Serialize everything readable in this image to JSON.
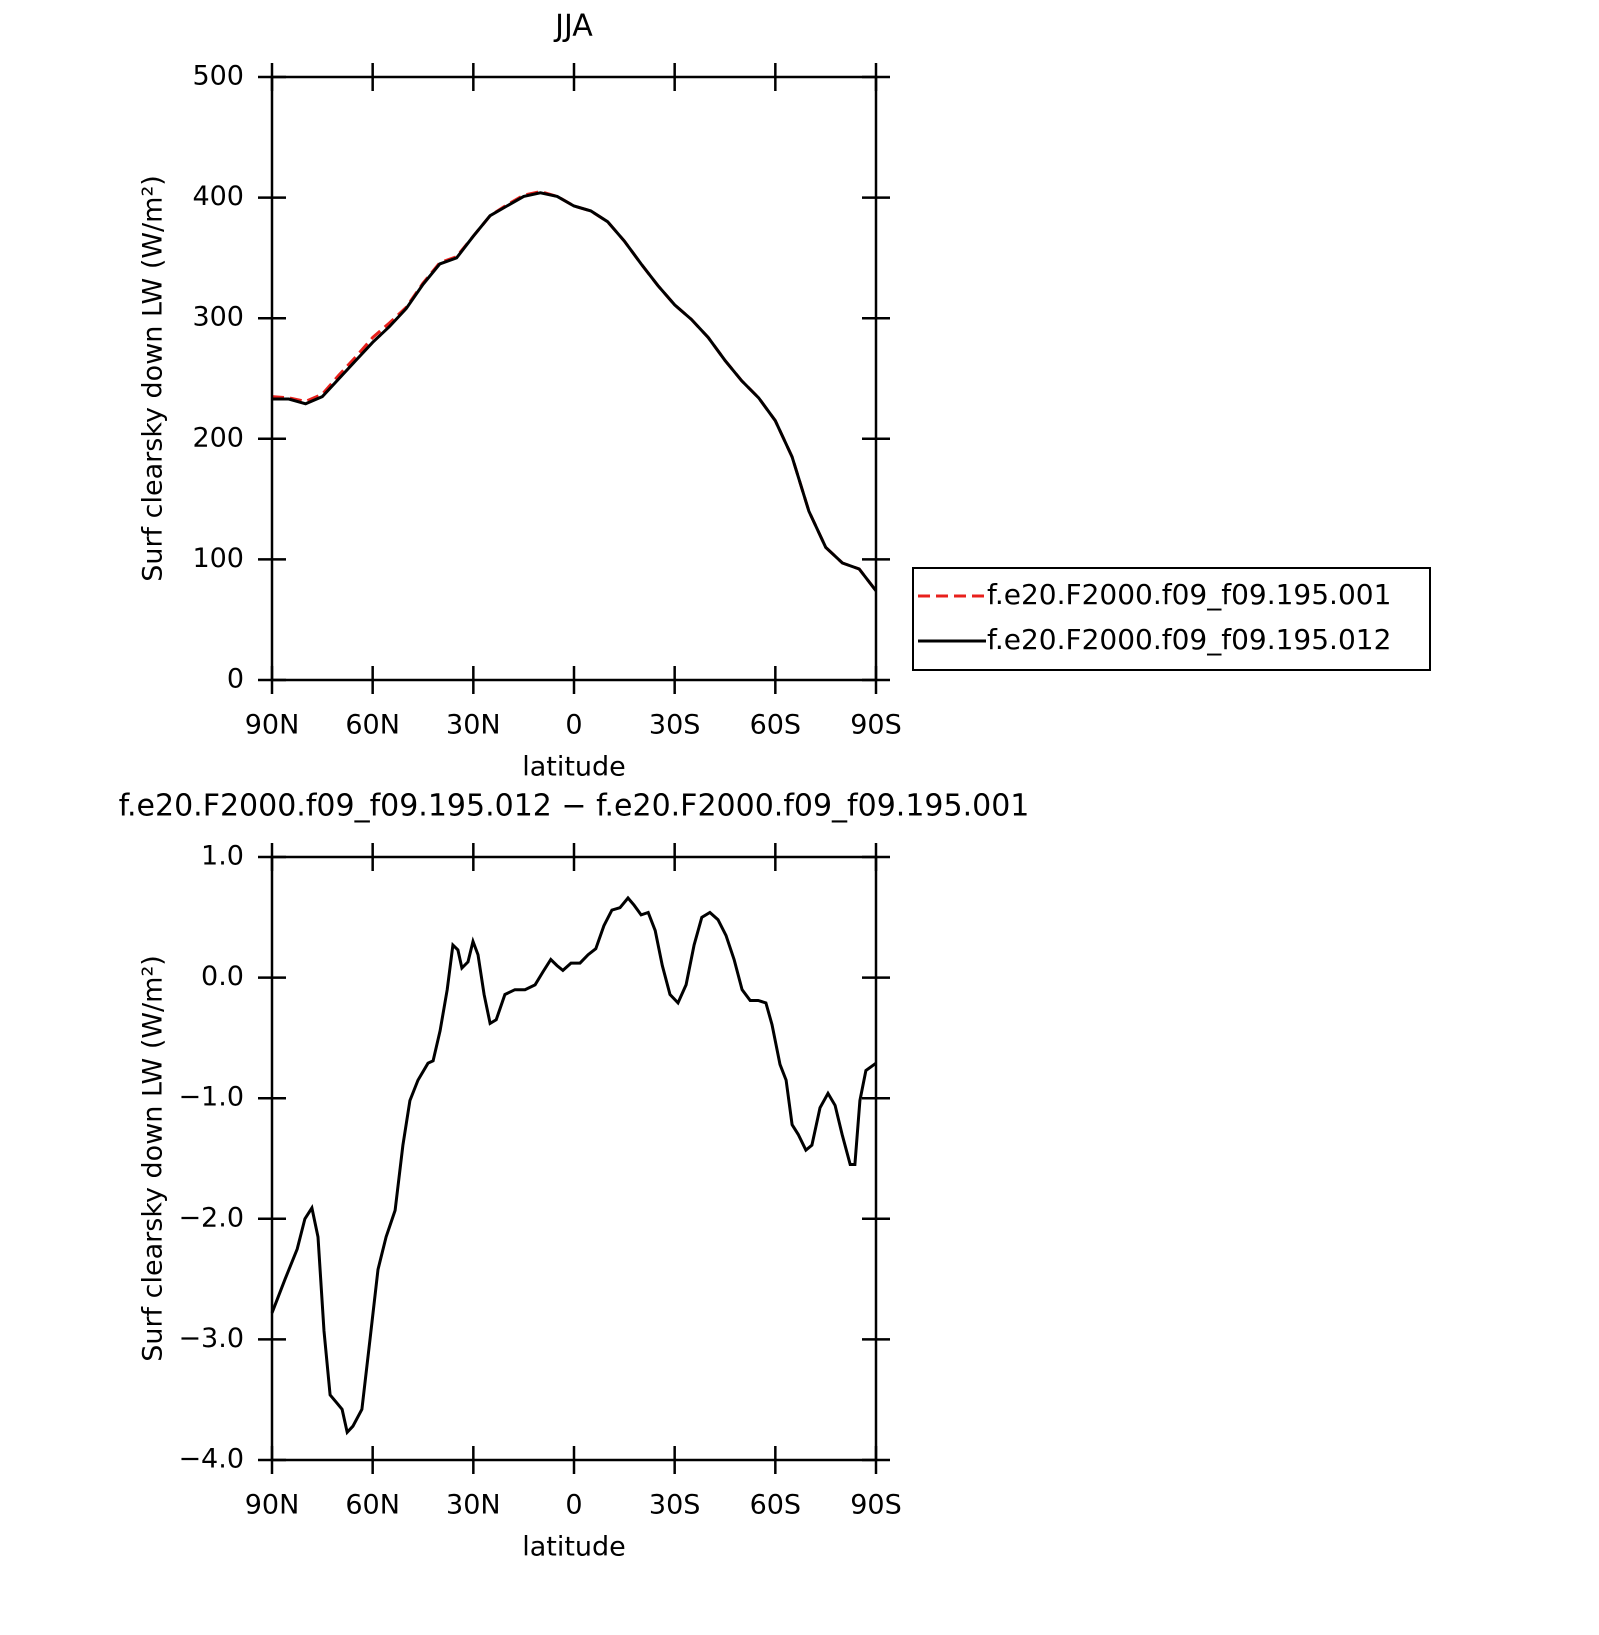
{
  "chart_data": [
    {
      "type": "line",
      "title": "JJA",
      "x_label": "latitude",
      "y_label": "Surf clearsky down LW (W/m²)",
      "x": [
        90,
        85,
        80,
        75,
        70,
        65,
        60,
        55,
        50,
        45,
        40,
        35,
        30,
        25,
        20,
        15,
        10,
        5,
        0,
        -5,
        -10,
        -15,
        -20,
        -25,
        -30,
        -35,
        -40,
        -45,
        -50,
        -55,
        -60,
        -65,
        -70,
        -75,
        -80,
        -85,
        -90
      ],
      "series": [
        {
          "name": "f.e20.F2000.f09_f09.195.001",
          "color": "#e8201c",
          "dash": "dashed",
          "values": [
            235,
            234,
            231,
            237,
            253,
            268,
            284,
            296,
            309,
            329,
            346,
            351,
            368,
            385,
            394,
            402,
            405,
            401,
            393,
            389,
            380,
            364,
            345,
            327,
            311,
            299,
            284,
            265,
            248,
            234,
            215,
            185,
            140,
            110,
            97,
            92,
            74
          ]
        },
        {
          "name": "f.e20.F2000.f09_f09.195.012",
          "color": "#000000",
          "dash": "solid",
          "values": [
            233,
            233,
            229,
            235,
            250,
            265,
            280,
            293,
            308,
            328,
            345,
            350,
            368,
            385,
            393,
            401,
            404,
            401,
            393,
            389,
            380,
            364,
            345,
            327,
            311,
            299,
            284,
            265,
            248,
            234,
            215,
            185,
            140,
            110,
            97,
            92,
            74
          ]
        }
      ],
      "xlim": [
        90,
        -90
      ],
      "xticks": [
        {
          "value": 90,
          "label": "90N"
        },
        {
          "value": 60,
          "label": "60N"
        },
        {
          "value": 30,
          "label": "30N"
        },
        0,
        {
          "value": -30,
          "label": "30S"
        },
        {
          "value": -60,
          "label": "60S"
        },
        {
          "value": -90,
          "label": "90S"
        }
      ],
      "ylim": [
        0,
        500
      ],
      "yticks": [
        0,
        100,
        200,
        300,
        400,
        500
      ],
      "legend": "right"
    },
    {
      "type": "line",
      "title": "f.e20.F2000.f09_f09.195.012 − f.e20.F2000.f09_f09.195.001",
      "x_label": "latitude",
      "y_label": "Surf clearsky down LW (W/m²)",
      "x": [
        90,
        86.1,
        82.5,
        80.2,
        78.1,
        76.3,
        74.5,
        72.7,
        70.9,
        69.1,
        67.6,
        65.9,
        63.2,
        60.8,
        58.4,
        56.0,
        53.3,
        51.0,
        48.9,
        46.5,
        43.5,
        42.0,
        39.9,
        37.8,
        36.1,
        34.6,
        33.4,
        31.6,
        30.1,
        28.6,
        26.8,
        25.0,
        23.2,
        20.6,
        17.6,
        14.6,
        11.6,
        9.2,
        6.9,
        5.1,
        3.3,
        0.9,
        -1.8,
        -4.2,
        -6.5,
        -8.9,
        -11.3,
        -13.7,
        -16.1,
        -17.9,
        -20.0,
        -22.1,
        -24.2,
        -26.3,
        -28.6,
        -31.0,
        -33.4,
        -35.8,
        -38.1,
        -40.5,
        -42.9,
        -45.3,
        -47.7,
        -50.1,
        -52.5,
        -54.9,
        -57.2,
        -59.0,
        -61.4,
        -63.2,
        -65.0,
        -66.8,
        -69.1,
        -70.9,
        -73.3,
        -75.7,
        -77.8,
        -79.9,
        -82.3,
        -83.7,
        -85.2,
        -87.0,
        -90
      ],
      "color": "#000000",
      "values": [
        -2.78,
        -2.5,
        -2.25,
        -2.0,
        -1.91,
        -2.15,
        -2.93,
        -3.46,
        -3.52,
        -3.58,
        -3.77,
        -3.72,
        -3.58,
        -3.0,
        -2.42,
        -2.15,
        -1.93,
        -1.39,
        -1.02,
        -0.85,
        -0.71,
        -0.69,
        -0.44,
        -0.1,
        0.27,
        0.23,
        0.08,
        0.13,
        0.3,
        0.19,
        -0.14,
        -0.38,
        -0.35,
        -0.14,
        -0.1,
        -0.1,
        -0.06,
        0.05,
        0.15,
        0.1,
        0.06,
        0.12,
        0.12,
        0.19,
        0.24,
        0.43,
        0.56,
        0.58,
        0.66,
        0.6,
        0.52,
        0.54,
        0.39,
        0.1,
        -0.14,
        -0.21,
        -0.06,
        0.27,
        0.5,
        0.54,
        0.48,
        0.35,
        0.15,
        -0.1,
        -0.19,
        -0.19,
        -0.21,
        -0.39,
        -0.72,
        -0.85,
        -1.22,
        -1.3,
        -1.43,
        -1.39,
        -1.08,
        -0.96,
        -1.06,
        -1.3,
        -1.55,
        -1.55,
        -1.02,
        -0.77,
        -0.71
      ],
      "xlim": [
        90,
        -90
      ],
      "xticks": [
        {
          "value": 90,
          "label": "90N"
        },
        {
          "value": 60,
          "label": "60N"
        },
        {
          "value": 30,
          "label": "30N"
        },
        0,
        {
          "value": -30,
          "label": "30S"
        },
        {
          "value": -60,
          "label": "60S"
        },
        {
          "value": -90,
          "label": "90S"
        }
      ],
      "ylim": [
        -4,
        1
      ],
      "yticks": [
        {
          "value": -4,
          "label": "−4.0"
        },
        {
          "value": -3,
          "label": "−3.0"
        },
        {
          "value": -2,
          "label": "−2.0"
        },
        {
          "value": -1,
          "label": "−1.0"
        },
        {
          "value": 0,
          "label": "0.0"
        },
        {
          "value": 1,
          "label": "1.0"
        }
      ]
    }
  ]
}
